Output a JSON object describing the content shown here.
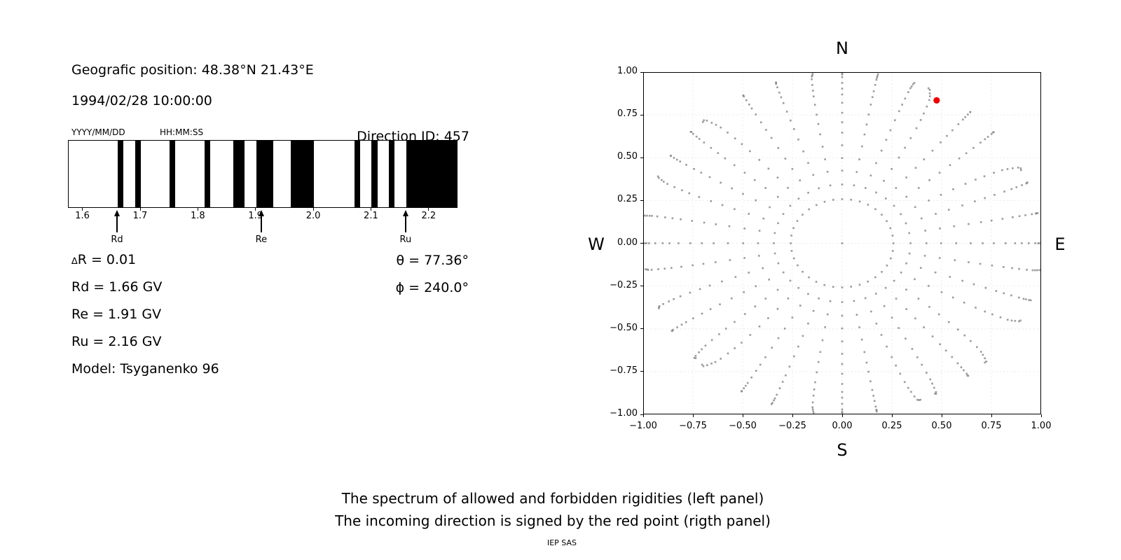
{
  "header": {
    "geo_position": "Geografic position: 48.38°N 21.43°E",
    "datetime": "1994/02/28 10:00:00",
    "date_format_hint": "YYYY/MM/DD",
    "time_format_hint": "HH:MM:SS",
    "direction_id": "Direction ID: 457"
  },
  "parameters": {
    "delta_symbol": "∆",
    "delta_line_rest": "R = 0.01",
    "rd_line": "Rd = 1.66 GV",
    "re_line": "Re = 1.91 GV",
    "ru_line": "Ru = 2.16 GV",
    "model_line": "Model: Tsyganenko 96",
    "theta_line": "θ = 77.36°",
    "phi_line": "ϕ = 240.0°"
  },
  "direction_panel": {
    "cardinal": {
      "north": "N",
      "south": "S",
      "west": "W",
      "east": "E"
    },
    "xtick_labels": [
      "−1.00",
      "−0.75",
      "−0.50",
      "−0.25",
      "0.00",
      "0.25",
      "0.50",
      "0.75",
      "1.00"
    ],
    "ytick_labels": [
      "1.00",
      "0.75",
      "0.50",
      "0.25",
      "0.00",
      "−0.25",
      "−0.50",
      "−0.75",
      "−1.00"
    ]
  },
  "caption": {
    "line1": "The spectrum of allowed and forbidden rigidities (left panel)",
    "line2": "The incoming direction is signed by the red point (rigth panel)",
    "credit": "IEP SAS"
  },
  "colors": {
    "dot_gray": "#8a8a8a",
    "red_point": "#ee0000",
    "grid_line": "#e9e9e9",
    "spine": "#000000",
    "bar_black": "#000000"
  },
  "chart_data": [
    {
      "type": "bar",
      "description": "Rigidity spectrum: black bands over white background (allowed vs forbidden rigidities)",
      "xlim": [
        1.575,
        2.25
      ],
      "xticks": [
        1.6,
        1.7,
        1.8,
        1.9,
        2.0,
        2.1,
        2.2
      ],
      "xtick_labels": [
        "1.6",
        "1.7",
        "1.8",
        "1.9",
        "2.0",
        "2.1",
        "2.2"
      ],
      "delta_r_gv": 0.01,
      "black_ranges_gv": [
        [
          1.66,
          1.67
        ],
        [
          1.69,
          1.7
        ],
        [
          1.75,
          1.76
        ],
        [
          1.81,
          1.82
        ],
        [
          1.86,
          1.88
        ],
        [
          1.9,
          1.93
        ],
        [
          1.96,
          2.0
        ],
        [
          2.07,
          2.08
        ],
        [
          2.1,
          2.11
        ],
        [
          2.13,
          2.14
        ],
        [
          2.16,
          2.25
        ]
      ],
      "markers": [
        {
          "label": "Rd",
          "value_gv": 1.66
        },
        {
          "label": "Re",
          "value_gv": 1.91
        },
        {
          "label": "Ru",
          "value_gv": 2.16
        }
      ],
      "model": "Tsyganenko 96"
    },
    {
      "type": "scatter",
      "description": "Direction map: dotted radial spokes of zenith/azimuth grid, red point marks incoming direction",
      "xlim": [
        -1,
        1
      ],
      "ylim": [
        -1,
        1
      ],
      "xticks": [
        -1,
        -0.75,
        -0.5,
        -0.25,
        0,
        0.25,
        0.5,
        0.75,
        1
      ],
      "yticks": [
        -1,
        -0.75,
        -0.5,
        -0.25,
        0,
        0.25,
        0.5,
        0.75,
        1
      ],
      "grid": true,
      "cardinal_labels": {
        "top": "N",
        "bottom": "S",
        "left": "W",
        "right": "E"
      },
      "direction_grid": {
        "azimuth_start_deg": 0,
        "azimuth_step_deg": 10,
        "azimuth_count": 36,
        "zenith_min_deg": 15,
        "zenith_max_deg": 90,
        "zenith_step_deg": 5,
        "radius_rule": "sin(zenith)",
        "center_point": true
      },
      "red_point": {
        "x": 0.475,
        "y": 0.835,
        "theta_deg": 77.36,
        "phi_deg": 240.0
      }
    }
  ]
}
